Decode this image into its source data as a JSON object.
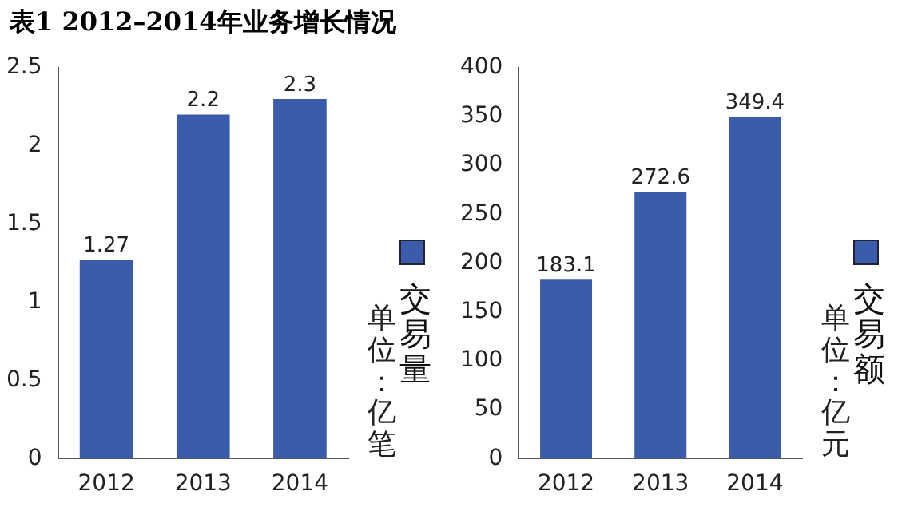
{
  "chart_data": [
    {
      "type": "bar",
      "title": "表1 2012–2014年业务增长情况",
      "categories": [
        "2012",
        "2013",
        "2014"
      ],
      "series": [
        {
          "name": "交易量",
          "color": "#3b5cab",
          "values": [
            1.27,
            2.2,
            2.3
          ]
        }
      ],
      "ylim": [
        0,
        2.5
      ],
      "yticks": [
        0,
        0.5,
        1,
        1.5,
        2,
        2.5
      ],
      "data_labels": true,
      "legend": "right",
      "annotations": [
        "单位：亿笔"
      ]
    },
    {
      "type": "bar",
      "categories": [
        "2012",
        "2013",
        "2014"
      ],
      "series": [
        {
          "name": "交易额",
          "color": "#3b5cab",
          "values": [
            183.1,
            272.6,
            349.4
          ]
        }
      ],
      "ylim": [
        0,
        400
      ],
      "yticks": [
        0,
        50,
        100,
        150,
        200,
        250,
        300,
        350,
        400
      ],
      "data_labels": true,
      "legend": "right",
      "annotations": [
        "单位：亿元"
      ]
    }
  ]
}
